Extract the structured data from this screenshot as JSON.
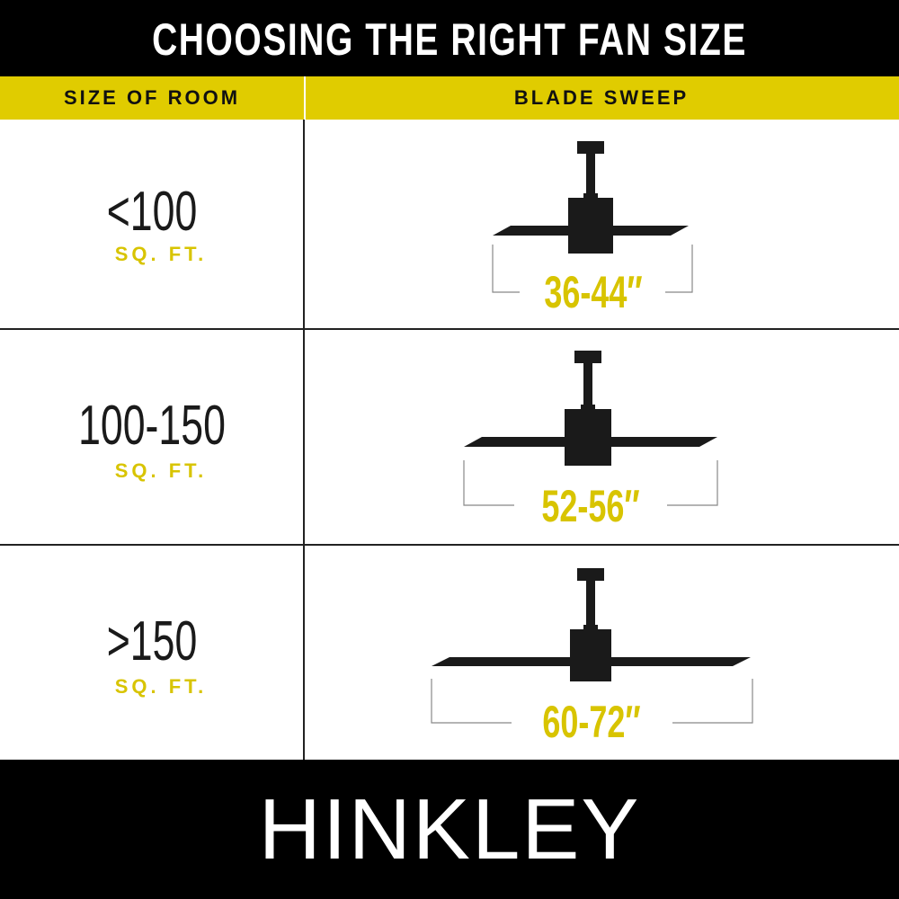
{
  "title": "CHOOSING THE RIGHT FAN SIZE",
  "header": {
    "col1": "SIZE OF ROOM",
    "col2": "BLADE SWEEP"
  },
  "rows": [
    {
      "room_size": "<100",
      "unit": "SQ. FT.",
      "blade_sweep": "36-44″"
    },
    {
      "room_size": "100-150",
      "unit": "SQ. FT.",
      "blade_sweep": "52-56″"
    },
    {
      "room_size": ">150",
      "unit": "SQ. FT.",
      "blade_sweep": "60-72″"
    }
  ],
  "brand": "HINKLEY",
  "colors": {
    "accent": "#e0cc00",
    "band": "#000000",
    "fan": "#1a1a1a"
  },
  "icons": [
    "ceiling-fan-icon",
    "ceiling-fan-icon",
    "ceiling-fan-icon"
  ]
}
